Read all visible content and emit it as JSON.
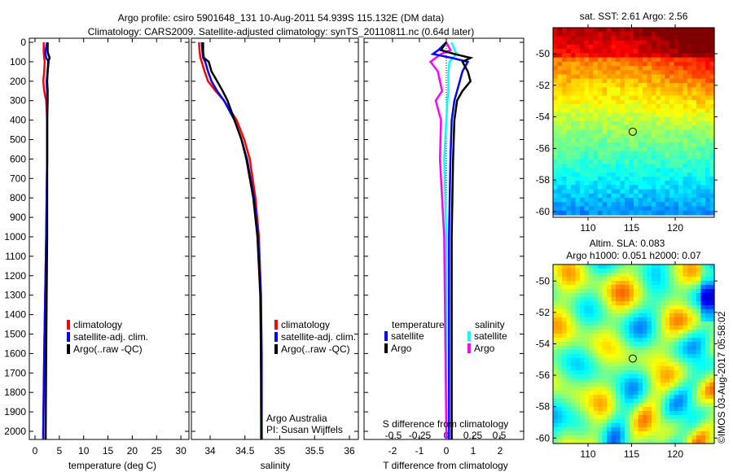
{
  "title_line1": "Argo profile: csiro 5901648_131 10-Aug-2011 54.939S 115.132E (DM data)",
  "title_line2": "Climatology: CARS2009. Satellite-adjusted climatology: synTS_20110811.nc (0.64d later)",
  "credit": "©IMOS 03-Aug-2017 05:58:02",
  "colors": {
    "climatology": "#ff0000",
    "satellite": "#0000ff",
    "argo": "#000000",
    "sal_satellite": "#00ffff",
    "sal_argo": "#ff00ff"
  },
  "chart_data": [
    {
      "type": "line",
      "name": "temperature",
      "xlabel": "temperature (deg C)",
      "ylabel": "",
      "xlim": [
        -1,
        31.5
      ],
      "ylim": [
        2040,
        0
      ],
      "xticks": [
        0,
        5,
        10,
        15,
        20,
        25,
        30
      ],
      "yticks": [
        0,
        100,
        200,
        300,
        400,
        500,
        600,
        700,
        800,
        900,
        1000,
        1100,
        1200,
        1300,
        1400,
        1500,
        1600,
        1700,
        1800,
        1900,
        2000
      ],
      "legend": [
        "climatology",
        "satellite-adj. clim.",
        "Argo(..raw -QC)"
      ],
      "depth": [
        0,
        50,
        80,
        100,
        150,
        200,
        250,
        300,
        400,
        600,
        800,
        1000,
        1300,
        1600,
        2000,
        2040
      ],
      "series": [
        {
          "name": "climatology",
          "values": [
            1.8,
            1.8,
            1.9,
            2.0,
            1.9,
            1.7,
            1.9,
            2.3,
            2.5,
            2.5,
            2.4,
            2.3,
            2.1,
            1.9,
            1.7,
            1.7
          ]
        },
        {
          "name": "satellite-adj. clim.",
          "values": [
            2.5,
            2.1,
            2.3,
            2.8,
            2.6,
            2.4,
            2.5,
            2.5,
            2.5,
            2.5,
            2.4,
            2.3,
            2.1,
            1.9,
            1.7,
            1.7
          ]
        },
        {
          "name": "Argo(..raw -QC)",
          "values": [
            2.6,
            2.6,
            3.0,
            2.7,
            2.6,
            2.5,
            2.6,
            2.6,
            2.5,
            2.5,
            2.5,
            2.5,
            2.4,
            2.3,
            2.2,
            2.2
          ]
        }
      ]
    },
    {
      "type": "line",
      "name": "salinity",
      "xlabel": "salinity",
      "xlim": [
        33.73,
        36.12
      ],
      "ylim": [
        2040,
        0
      ],
      "xticks": [
        34,
        34.5,
        35,
        35.5,
        36
      ],
      "legend": [
        "climatology",
        "satellite-adj. clim.",
        "Argo(..raw -QC)"
      ],
      "annotation": [
        "Argo Australia",
        "PI: Susan Wijffels"
      ],
      "depth": [
        0,
        50,
        80,
        100,
        150,
        200,
        250,
        300,
        400,
        500,
        600,
        800,
        1000,
        1300,
        1600,
        2000,
        2040
      ],
      "series": [
        {
          "name": "climatology",
          "values": [
            33.84,
            33.85,
            33.86,
            33.88,
            33.92,
            33.97,
            34.08,
            34.2,
            34.38,
            34.49,
            34.57,
            34.65,
            34.7,
            34.73,
            34.73,
            34.73,
            34.73
          ]
        },
        {
          "name": "satellite-adj. clim.",
          "values": [
            33.88,
            33.89,
            33.9,
            33.93,
            33.97,
            34.02,
            34.1,
            34.2,
            34.35,
            34.45,
            34.53,
            34.63,
            34.69,
            34.73,
            34.74,
            34.74,
            34.74
          ]
        },
        {
          "name": "Argo(..raw -QC)",
          "values": [
            33.9,
            33.9,
            33.91,
            33.98,
            34.02,
            34.1,
            34.18,
            34.25,
            34.35,
            34.45,
            34.52,
            34.62,
            34.68,
            34.72,
            34.73,
            34.74,
            34.74
          ]
        }
      ]
    },
    {
      "type": "line",
      "name": "difference",
      "xlabel": "T difference from climatology",
      "x2label": "S difference from climatology",
      "xlim": [
        -3,
        3
      ],
      "xticks": [
        -2,
        -1,
        0,
        1,
        2
      ],
      "x2ticks": [
        "-0.5",
        "-0.25",
        "0",
        "0.25",
        "0.5"
      ],
      "ylim": [
        2040,
        0
      ],
      "legend": {
        "temperature_header": "temperature",
        "salinity_header": "salinity",
        "items": [
          "satellite",
          "Argo",
          "satellite",
          "Argo"
        ]
      },
      "depth": [
        0,
        40,
        60,
        80,
        100,
        150,
        200,
        250,
        300,
        400,
        600,
        1000,
        1500,
        2000,
        2040
      ],
      "t_series": [
        {
          "name": "T satellite",
          "values": [
            0,
            -0.3,
            -0.5,
            0.2,
            0.8,
            0.6,
            0.5,
            0.4,
            0.3,
            0.2,
            0.15,
            0.1,
            0.1,
            0.1,
            0.1
          ]
        },
        {
          "name": "T Argo",
          "values": [
            0,
            -0.2,
            0.3,
            0.9,
            0.6,
            0.8,
            0.9,
            0.6,
            0.4,
            0.3,
            0.25,
            0.2,
            0.2,
            0.2,
            0.2
          ]
        }
      ],
      "s_series": [
        {
          "name": "S satellite",
          "values": [
            0.05,
            0.08,
            0.1,
            0.06,
            0.03,
            0.02,
            0.02,
            0.02,
            0.01,
            0,
            -0.02,
            0,
            0,
            0,
            0
          ]
        },
        {
          "name": "S Argo",
          "values": [
            0.0,
            0.04,
            -0.05,
            -0.1,
            -0.15,
            -0.08,
            -0.06,
            -0.04,
            -0.1,
            -0.05,
            -0.06,
            -0.02,
            -0.01,
            0,
            0
          ]
        }
      ]
    },
    {
      "type": "heatmap",
      "name": "sst_map",
      "title": "sat. SST: 2.61 Argo: 2.56",
      "xticks": [
        110,
        115,
        120
      ],
      "yticks": [
        -50,
        -52,
        -54,
        -56,
        -58,
        -60
      ],
      "xlim": [
        106.3,
        124.2
      ],
      "ylim": [
        -61,
        -49
      ],
      "marker": [
        115.132,
        -54.939
      ]
    },
    {
      "type": "heatmap",
      "name": "sla_map",
      "title": "Altim. SLA: 0.083",
      "subtitle": "Argo h1000: 0.051 h2000: 0.07",
      "xticks": [
        110,
        115,
        120
      ],
      "yticks": [
        -50,
        -52,
        -54,
        -56,
        -58,
        -60
      ],
      "xlim": [
        106.3,
        124.2
      ],
      "ylim": [
        -60.4,
        -48.9
      ],
      "marker": [
        115.132,
        -54.939
      ]
    }
  ]
}
